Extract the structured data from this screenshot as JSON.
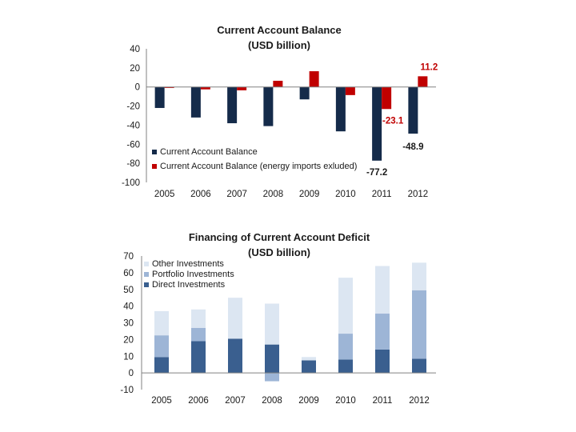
{
  "colors": {
    "navy": "#152B4A",
    "red": "#C00000",
    "stack_direct": "#3A5F8F",
    "stack_portfolio": "#9DB5D6",
    "stack_other": "#DCE6F2",
    "label_dark": "#1a1a1a",
    "label_red": "#C00000",
    "axis": "#808080"
  },
  "chart_data": [
    {
      "type": "bar",
      "title": "Current Account Balance",
      "subtitle": "(USD billion)",
      "categories": [
        "2005",
        "2006",
        "2007",
        "2008",
        "2009",
        "2010",
        "2011",
        "2012"
      ],
      "ylim": [
        -100,
        40
      ],
      "yticks": [
        "40",
        "20",
        "0",
        "-20",
        "-40",
        "-60",
        "-80",
        "-100"
      ],
      "ytick_values": [
        40,
        20,
        0,
        -20,
        -40,
        -60,
        -80,
        -100
      ],
      "legend_position": "bottom-left",
      "series": [
        {
          "name": "Current Account Balance",
          "color_key": "navy",
          "values": [
            -22.0,
            -32.0,
            -38.0,
            -41.0,
            -13.0,
            -46.5,
            -77.2,
            -48.9
          ]
        },
        {
          "name": "Current Account Balance (energy imports exluded)",
          "color_key": "red",
          "values": [
            -1.0,
            -2.5,
            -3.5,
            6.5,
            16.5,
            -8.5,
            -23.1,
            11.2
          ]
        }
      ],
      "data_labels": [
        {
          "text": "-77.2",
          "series": 0,
          "category": 6,
          "color_key": "label_dark"
        },
        {
          "text": "-48.9",
          "series": 0,
          "category": 7,
          "color_key": "label_dark"
        },
        {
          "text": "-23.1",
          "series": 1,
          "category": 6,
          "color_key": "label_red"
        },
        {
          "text": "11.2",
          "series": 1,
          "category": 7,
          "color_key": "label_red"
        }
      ]
    },
    {
      "type": "bar",
      "stacked": true,
      "title": "Financing of Current Account Deficit",
      "subtitle": "(USD billion)",
      "categories": [
        "2005",
        "2006",
        "2007",
        "2008",
        "2009",
        "2010",
        "2011",
        "2012"
      ],
      "ylim": [
        -10,
        70
      ],
      "yticks": [
        "70",
        "60",
        "50",
        "40",
        "30",
        "20",
        "10",
        "0",
        "-10"
      ],
      "ytick_values": [
        70,
        60,
        50,
        40,
        30,
        20,
        10,
        0,
        -10
      ],
      "legend_position": "top-left",
      "series": [
        {
          "name": "Direct Investments",
          "color_key": "stack_direct",
          "values": [
            9.5,
            19.0,
            20.5,
            17.0,
            7.5,
            8.0,
            14.0,
            8.5
          ]
        },
        {
          "name": "Portfolio Investments",
          "color_key": "stack_portfolio",
          "values": [
            13.0,
            8.0,
            0.0,
            -5.0,
            0.0,
            15.5,
            21.5,
            41.0
          ]
        },
        {
          "name": "Other Investments",
          "color_key": "stack_other",
          "values": [
            14.5,
            11.0,
            24.5,
            24.5,
            2.0,
            33.5,
            28.5,
            16.5
          ]
        }
      ],
      "legend_order": [
        2,
        1,
        0
      ]
    }
  ]
}
